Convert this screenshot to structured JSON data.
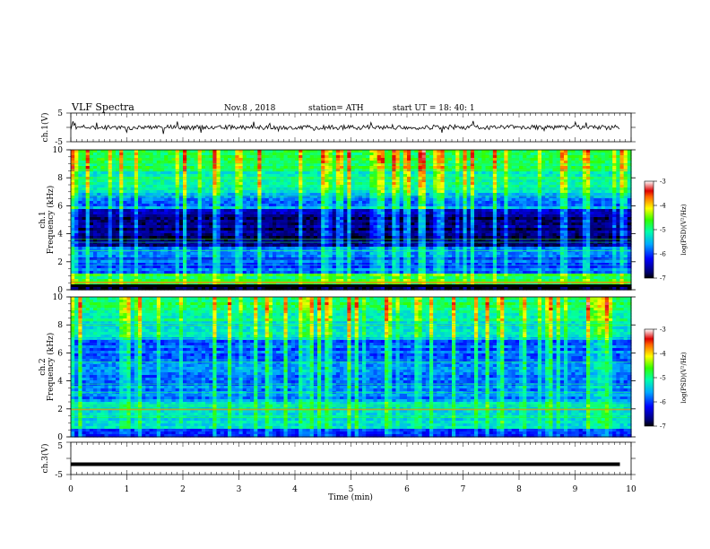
{
  "header": {
    "title": "VLF  Spectra",
    "date": "Nov.8  , 2018",
    "station": "station= ATH",
    "start": "start  UT  =    18: 40: 1"
  },
  "chart_data": [
    {
      "type": "line",
      "panel": "ch1-waveform",
      "ylabel": "ch.1(V)",
      "ylim": [
        -5,
        5
      ],
      "ytick_labels": [
        "5",
        "-5"
      ],
      "xlim": [
        0,
        10
      ]
    },
    {
      "type": "heatmap",
      "panel": "ch1-spectrogram",
      "ylabel": "ch.1\nFrequency  (kHz)",
      "ylim": [
        0,
        10
      ],
      "yticks": [
        0,
        2,
        4,
        6,
        8,
        10
      ],
      "xlim": [
        0,
        10
      ],
      "colorbar": {
        "label": "log(PSD)(V²/Hz)",
        "range": [
          -7,
          -3
        ],
        "ticks": [
          -3,
          -4,
          -5,
          -6,
          -7
        ]
      }
    },
    {
      "type": "heatmap",
      "panel": "ch2-spectrogram",
      "ylabel": "ch.2\nFrequency  (kHz)",
      "ylim": [
        0,
        10
      ],
      "yticks": [
        0,
        2,
        4,
        6,
        8,
        10
      ],
      "xlim": [
        0,
        10
      ],
      "colorbar": {
        "label": "log(PSD)(V²/Hz)",
        "range": [
          -7,
          -3
        ],
        "ticks": [
          -3,
          -4,
          -5,
          -6,
          -7
        ]
      }
    },
    {
      "type": "line",
      "panel": "ch3-waveform",
      "ylabel": "ch.3(V)",
      "ylim": [
        -5,
        5
      ],
      "ytick_labels": [
        "5",
        "-5"
      ],
      "xlim": [
        0,
        10
      ],
      "xlabel": "Time  (min)",
      "xticks": [
        0,
        1,
        2,
        3,
        4,
        5,
        6,
        7,
        8,
        9,
        10
      ],
      "level": -1.8
    }
  ]
}
